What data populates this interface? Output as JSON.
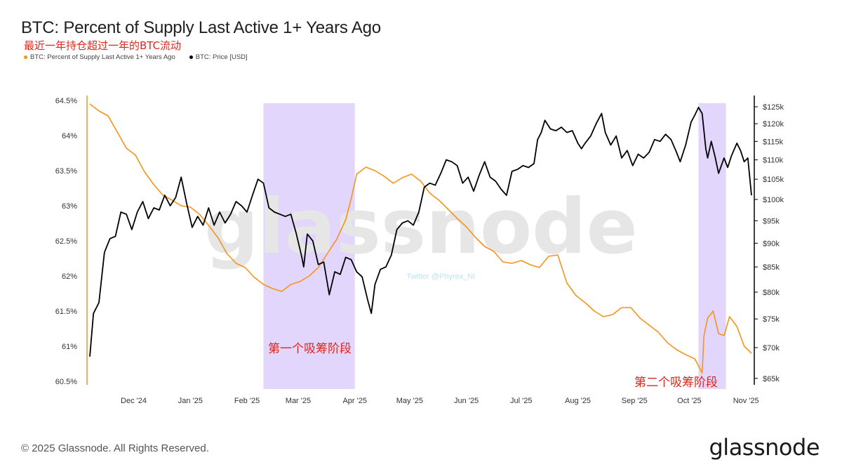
{
  "header": {
    "title": "BTC: Percent of Supply Last Active 1+ Years Ago",
    "subtitle_cn": "最近一年持仓超过一年的BTC流动"
  },
  "legend": [
    {
      "label": "BTC: Percent of Supply Last Active 1+ Years Ago",
      "color": "#f7931a"
    },
    {
      "label": "BTC: Price [USD]",
      "color": "#000000"
    }
  ],
  "footer": {
    "copyright": "© 2025 Glassnode. All Rights Reserved.",
    "brand": "glassnode"
  },
  "watermark": {
    "main": "glassnode",
    "small": "Twitter @Phyrex_Ni"
  },
  "chart_data": {
    "type": "line",
    "x_axis": {
      "type": "date",
      "range": [
        "2024-11-07",
        "2025-11-04"
      ],
      "ticks": [
        {
          "date": "2024-12-01",
          "label": "Dec '24"
        },
        {
          "date": "2025-01-01",
          "label": "Jan '25"
        },
        {
          "date": "2025-02-01",
          "label": "Feb '25"
        },
        {
          "date": "2025-03-01",
          "label": "Mar '25"
        },
        {
          "date": "2025-04-01",
          "label": "Apr '25"
        },
        {
          "date": "2025-05-01",
          "label": "May '25"
        },
        {
          "date": "2025-06-01",
          "label": "Jun '25"
        },
        {
          "date": "2025-07-01",
          "label": "Jul '25"
        },
        {
          "date": "2025-08-01",
          "label": "Aug '25"
        },
        {
          "date": "2025-09-01",
          "label": "Sep '25"
        },
        {
          "date": "2025-10-01",
          "label": "Oct '25"
        },
        {
          "date": "2025-11-01",
          "label": "Nov '25"
        }
      ]
    },
    "y_left": {
      "min": 60.45,
      "max": 64.55,
      "ticks": [
        64.5,
        64,
        63.5,
        63,
        62.5,
        62,
        61.5,
        61,
        60.5
      ],
      "tick_labels": [
        "64.5%",
        "64%",
        "63.5%",
        "63%",
        "62.5%",
        "62%",
        "61.5%",
        "61%",
        "60.5%"
      ]
    },
    "y_right": {
      "scale": "log",
      "min": 64000,
      "max": 128000,
      "ticks": [
        125000,
        120000,
        115000,
        110000,
        105000,
        100000,
        95000,
        90000,
        85000,
        80000,
        75000,
        70000,
        65000
      ],
      "tick_labels": [
        "$125k",
        "$120k",
        "$115k",
        "$110k",
        "$105k",
        "$100k",
        "$95k",
        "$90k",
        "$85k",
        "$80k",
        "$75k",
        "$70k",
        "$65k"
      ]
    },
    "highlight_ranges": [
      {
        "start": "2025-02-10",
        "end": "2025-04-01",
        "label": "第一个吸筹阶段",
        "color": "#d9c8fb"
      },
      {
        "start": "2025-10-06",
        "end": "2025-10-21",
        "label": "第二个吸筹阶段",
        "color": "#d9c8fb"
      }
    ],
    "series": [
      {
        "name": "BTC: Percent of Supply Last Active 1+ Years Ago",
        "color": "#f7931a",
        "axis": "left",
        "points": [
          [
            "2024-11-07",
            64.45
          ],
          [
            "2024-11-12",
            64.35
          ],
          [
            "2024-11-17",
            64.28
          ],
          [
            "2024-11-22",
            64.05
          ],
          [
            "2024-11-27",
            63.82
          ],
          [
            "2024-12-02",
            63.72
          ],
          [
            "2024-12-07",
            63.48
          ],
          [
            "2024-12-12",
            63.3
          ],
          [
            "2024-12-17",
            63.15
          ],
          [
            "2024-12-22",
            63.08
          ],
          [
            "2024-12-27",
            63.0
          ],
          [
            "2025-01-01",
            62.98
          ],
          [
            "2025-01-06",
            62.88
          ],
          [
            "2025-01-11",
            62.72
          ],
          [
            "2025-01-16",
            62.55
          ],
          [
            "2025-01-21",
            62.32
          ],
          [
            "2025-01-26",
            62.18
          ],
          [
            "2025-01-31",
            62.12
          ],
          [
            "2025-02-05",
            61.98
          ],
          [
            "2025-02-10",
            61.88
          ],
          [
            "2025-02-15",
            61.82
          ],
          [
            "2025-02-20",
            61.78
          ],
          [
            "2025-02-25",
            61.88
          ],
          [
            "2025-03-02",
            61.92
          ],
          [
            "2025-03-07",
            62.0
          ],
          [
            "2025-03-12",
            62.12
          ],
          [
            "2025-03-17",
            62.32
          ],
          [
            "2025-03-22",
            62.52
          ],
          [
            "2025-03-27",
            62.8
          ],
          [
            "2025-03-30",
            63.1
          ],
          [
            "2025-04-02",
            63.45
          ],
          [
            "2025-04-07",
            63.55
          ],
          [
            "2025-04-12",
            63.5
          ],
          [
            "2025-04-17",
            63.42
          ],
          [
            "2025-04-22",
            63.32
          ],
          [
            "2025-04-27",
            63.4
          ],
          [
            "2025-05-02",
            63.45
          ],
          [
            "2025-05-07",
            63.35
          ],
          [
            "2025-05-12",
            63.18
          ],
          [
            "2025-05-17",
            63.08
          ],
          [
            "2025-05-22",
            62.95
          ],
          [
            "2025-05-27",
            62.82
          ],
          [
            "2025-06-01",
            62.7
          ],
          [
            "2025-06-06",
            62.55
          ],
          [
            "2025-06-11",
            62.42
          ],
          [
            "2025-06-16",
            62.35
          ],
          [
            "2025-06-21",
            62.2
          ],
          [
            "2025-06-26",
            62.18
          ],
          [
            "2025-07-01",
            62.22
          ],
          [
            "2025-07-06",
            62.16
          ],
          [
            "2025-07-11",
            62.12
          ],
          [
            "2025-07-16",
            62.28
          ],
          [
            "2025-07-21",
            62.3
          ],
          [
            "2025-07-26",
            61.9
          ],
          [
            "2025-07-31",
            61.72
          ],
          [
            "2025-08-05",
            61.62
          ],
          [
            "2025-08-10",
            61.5
          ],
          [
            "2025-08-15",
            61.42
          ],
          [
            "2025-08-20",
            61.45
          ],
          [
            "2025-08-25",
            61.55
          ],
          [
            "2025-08-30",
            61.55
          ],
          [
            "2025-09-04",
            61.4
          ],
          [
            "2025-09-09",
            61.3
          ],
          [
            "2025-09-14",
            61.2
          ],
          [
            "2025-09-19",
            61.05
          ],
          [
            "2025-09-24",
            60.95
          ],
          [
            "2025-09-29",
            60.88
          ],
          [
            "2025-10-04",
            60.82
          ],
          [
            "2025-10-08",
            60.62
          ],
          [
            "2025-10-09",
            61.15
          ],
          [
            "2025-10-11",
            61.4
          ],
          [
            "2025-10-14",
            61.5
          ],
          [
            "2025-10-17",
            61.18
          ],
          [
            "2025-10-20",
            61.15
          ],
          [
            "2025-10-23",
            61.42
          ],
          [
            "2025-10-27",
            61.28
          ],
          [
            "2025-10-31",
            61.0
          ],
          [
            "2025-11-04",
            60.9
          ]
        ]
      },
      {
        "name": "BTC: Price [USD]",
        "color": "#000000",
        "axis": "right",
        "points": [
          [
            "2024-11-07",
            68500
          ],
          [
            "2024-11-09",
            76000
          ],
          [
            "2024-11-12",
            78000
          ],
          [
            "2024-11-15",
            88000
          ],
          [
            "2024-11-18",
            91000
          ],
          [
            "2024-11-21",
            91500
          ],
          [
            "2024-11-24",
            97000
          ],
          [
            "2024-11-27",
            96500
          ],
          [
            "2024-11-30",
            93000
          ],
          [
            "2024-12-03",
            97000
          ],
          [
            "2024-12-06",
            99500
          ],
          [
            "2024-12-09",
            95500
          ],
          [
            "2024-12-12",
            98000
          ],
          [
            "2024-12-15",
            97500
          ],
          [
            "2024-12-18",
            101000
          ],
          [
            "2024-12-21",
            98500
          ],
          [
            "2024-12-24",
            100500
          ],
          [
            "2024-12-27",
            105500
          ],
          [
            "2024-12-30",
            99000
          ],
          [
            "2025-01-02",
            93500
          ],
          [
            "2025-01-05",
            96000
          ],
          [
            "2025-01-08",
            94000
          ],
          [
            "2025-01-11",
            98000
          ],
          [
            "2025-01-14",
            94000
          ],
          [
            "2025-01-17",
            97000
          ],
          [
            "2025-01-20",
            94500
          ],
          [
            "2025-01-23",
            96500
          ],
          [
            "2025-01-26",
            99500
          ],
          [
            "2025-01-29",
            98500
          ],
          [
            "2025-02-01",
            97000
          ],
          [
            "2025-02-04",
            101000
          ],
          [
            "2025-02-07",
            105000
          ],
          [
            "2025-02-10",
            104000
          ],
          [
            "2025-02-13",
            98000
          ],
          [
            "2025-02-16",
            97000
          ],
          [
            "2025-02-19",
            96500
          ],
          [
            "2025-02-22",
            96000
          ],
          [
            "2025-02-25",
            96500
          ],
          [
            "2025-02-28",
            92000
          ],
          [
            "2025-03-03",
            87000
          ],
          [
            "2025-03-04",
            85000
          ],
          [
            "2025-03-06",
            92000
          ],
          [
            "2025-03-09",
            90500
          ],
          [
            "2025-03-12",
            85500
          ],
          [
            "2025-03-15",
            86000
          ],
          [
            "2025-03-18",
            79500
          ],
          [
            "2025-03-21",
            84000
          ],
          [
            "2025-03-24",
            83500
          ],
          [
            "2025-03-27",
            87000
          ],
          [
            "2025-03-30",
            86500
          ],
          [
            "2025-04-02",
            84000
          ],
          [
            "2025-04-05",
            83000
          ],
          [
            "2025-04-08",
            78500
          ],
          [
            "2025-04-10",
            76000
          ],
          [
            "2025-04-12",
            81500
          ],
          [
            "2025-04-15",
            84500
          ],
          [
            "2025-04-18",
            85000
          ],
          [
            "2025-04-21",
            87500
          ],
          [
            "2025-04-24",
            93000
          ],
          [
            "2025-04-27",
            94500
          ],
          [
            "2025-04-30",
            95000
          ],
          [
            "2025-05-03",
            94000
          ],
          [
            "2025-05-06",
            97000
          ],
          [
            "2025-05-09",
            103000
          ],
          [
            "2025-05-12",
            104000
          ],
          [
            "2025-05-15",
            103500
          ],
          [
            "2025-05-18",
            106500
          ],
          [
            "2025-05-21",
            110000
          ],
          [
            "2025-05-24",
            109500
          ],
          [
            "2025-05-27",
            108500
          ],
          [
            "2025-05-30",
            104000
          ],
          [
            "2025-06-02",
            105500
          ],
          [
            "2025-06-05",
            102000
          ],
          [
            "2025-06-08",
            106000
          ],
          [
            "2025-06-11",
            109500
          ],
          [
            "2025-06-14",
            105500
          ],
          [
            "2025-06-17",
            104500
          ],
          [
            "2025-06-20",
            102500
          ],
          [
            "2025-06-23",
            101000
          ],
          [
            "2025-06-26",
            107000
          ],
          [
            "2025-06-29",
            107500
          ],
          [
            "2025-07-02",
            108500
          ],
          [
            "2025-07-05",
            108000
          ],
          [
            "2025-07-08",
            109000
          ],
          [
            "2025-07-10",
            115500
          ],
          [
            "2025-07-12",
            117500
          ],
          [
            "2025-07-14",
            121000
          ],
          [
            "2025-07-17",
            118500
          ],
          [
            "2025-07-20",
            118000
          ],
          [
            "2025-07-23",
            119000
          ],
          [
            "2025-07-26",
            117500
          ],
          [
            "2025-07-29",
            118000
          ],
          [
            "2025-08-01",
            114500
          ],
          [
            "2025-08-03",
            113000
          ],
          [
            "2025-08-05",
            114500
          ],
          [
            "2025-08-08",
            116500
          ],
          [
            "2025-08-11",
            120000
          ],
          [
            "2025-08-14",
            123000
          ],
          [
            "2025-08-16",
            117500
          ],
          [
            "2025-08-19",
            114000
          ],
          [
            "2025-08-22",
            116500
          ],
          [
            "2025-08-25",
            110500
          ],
          [
            "2025-08-28",
            112500
          ],
          [
            "2025-08-31",
            108500
          ],
          [
            "2025-09-03",
            111500
          ],
          [
            "2025-09-06",
            110500
          ],
          [
            "2025-09-09",
            112000
          ],
          [
            "2025-09-12",
            115500
          ],
          [
            "2025-09-15",
            115000
          ],
          [
            "2025-09-18",
            117000
          ],
          [
            "2025-09-21",
            115500
          ],
          [
            "2025-09-24",
            112000
          ],
          [
            "2025-09-26",
            109500
          ],
          [
            "2025-09-29",
            114000
          ],
          [
            "2025-10-02",
            120500
          ],
          [
            "2025-10-04",
            122500
          ],
          [
            "2025-10-06",
            124800
          ],
          [
            "2025-10-08",
            123000
          ],
          [
            "2025-10-10",
            113000
          ],
          [
            "2025-10-11",
            110500
          ],
          [
            "2025-10-13",
            115000
          ],
          [
            "2025-10-15",
            111000
          ],
          [
            "2025-10-17",
            106500
          ],
          [
            "2025-10-20",
            110500
          ],
          [
            "2025-10-22",
            108000
          ],
          [
            "2025-10-24",
            111000
          ],
          [
            "2025-10-27",
            114500
          ],
          [
            "2025-10-29",
            112500
          ],
          [
            "2025-10-31",
            109500
          ],
          [
            "2025-11-02",
            110500
          ],
          [
            "2025-11-04",
            101000
          ]
        ]
      }
    ]
  }
}
